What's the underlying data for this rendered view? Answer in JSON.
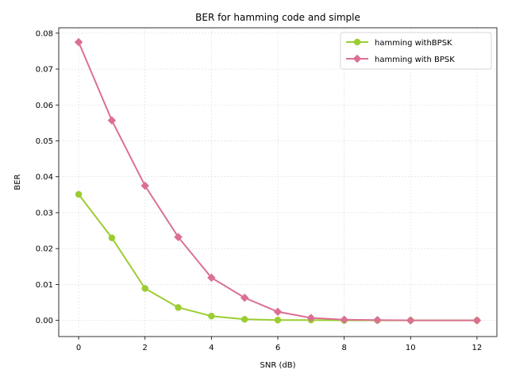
{
  "chart_data": {
    "type": "line",
    "title": "BER for hamming code and simple",
    "xlabel": "SNR (dB)",
    "ylabel": "BER",
    "xlim": [
      -0.6,
      12.6
    ],
    "ylim": [
      -0.0045,
      0.0815
    ],
    "xticks": [
      0,
      2,
      4,
      6,
      8,
      10,
      12
    ],
    "xtick_labels": [
      "0",
      "2",
      "4",
      "6",
      "8",
      "10",
      "12"
    ],
    "yticks": [
      0.0,
      0.01,
      0.02,
      0.03,
      0.04,
      0.05,
      0.06,
      0.07,
      0.08
    ],
    "ytick_labels": [
      "0.00",
      "0.01",
      "0.02",
      "0.03",
      "0.04",
      "0.05",
      "0.06",
      "0.07",
      "0.08"
    ],
    "grid": true,
    "legend_position": "top-right",
    "series": [
      {
        "name": "hamming withBPSK",
        "color": "#9acd32",
        "marker": "circle",
        "x": [
          0,
          1,
          2,
          3,
          4,
          5,
          6,
          7,
          8,
          9,
          10,
          12
        ],
        "y": [
          0.0351,
          0.023,
          0.0089,
          0.0036,
          0.0012,
          0.0003,
          0.0001,
          0.0001,
          0.0,
          0.0,
          0.0,
          0.0
        ]
      },
      {
        "name": "hamming with BPSK",
        "color": "#db7093",
        "marker": "diamond",
        "x": [
          0,
          1,
          2,
          3,
          4,
          5,
          6,
          7,
          8,
          9,
          10,
          12
        ],
        "y": [
          0.0775,
          0.0557,
          0.0375,
          0.0232,
          0.0119,
          0.0063,
          0.0024,
          0.0007,
          0.0002,
          0.0001,
          0.0,
          0.0
        ]
      }
    ]
  }
}
